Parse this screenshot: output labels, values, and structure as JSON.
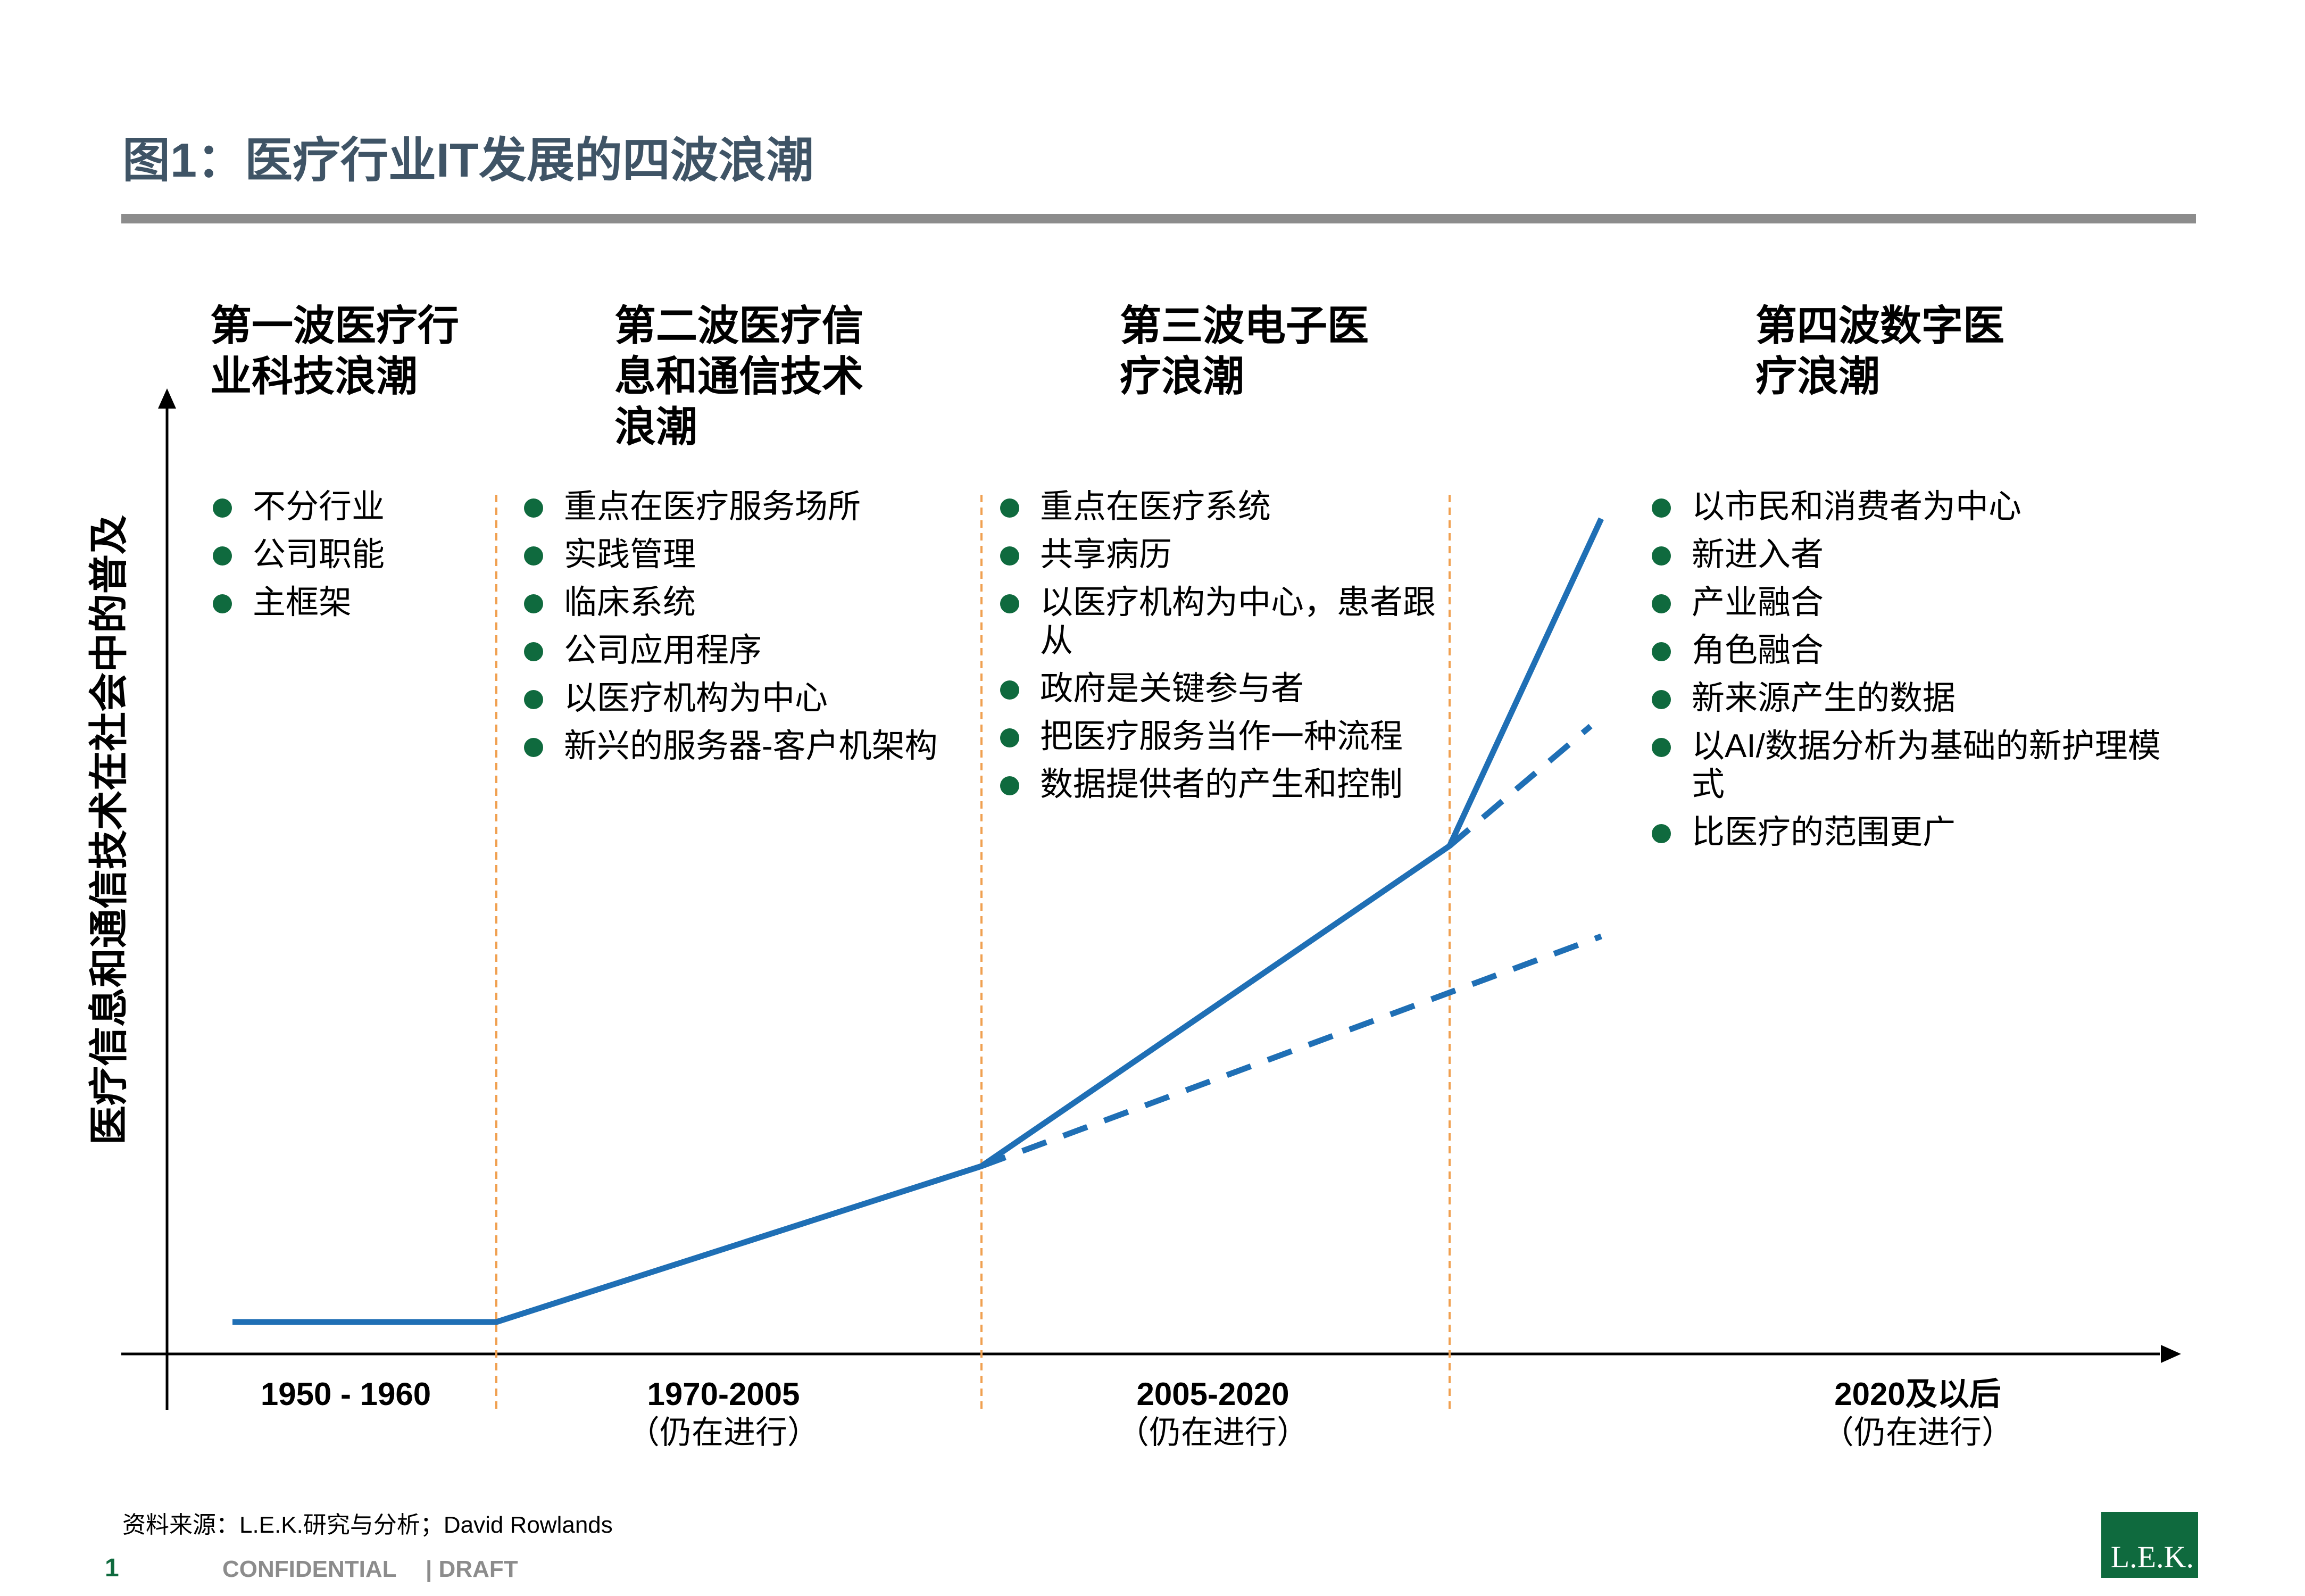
{
  "title": "图1：医疗行业IT发展的四波浪潮",
  "y_axis_label": "医疗信息和通信技术在社会中的普及",
  "waves": [
    {
      "title_lines": [
        "第一波医疗行",
        "业科技浪潮"
      ],
      "bullets": [
        "不分行业",
        "公司职能",
        "主框架"
      ],
      "period": "1950 - 1960",
      "status": ""
    },
    {
      "title_lines": [
        "第二波医疗信",
        "息和通信技术",
        "浪潮"
      ],
      "bullets": [
        "重点在医疗服务场所",
        "实践管理",
        "临床系统",
        "公司应用程序",
        "以医疗机构为中心",
        "新兴的服务器-客户机架构"
      ],
      "period": "1970-2005",
      "status": "（仍在进行）"
    },
    {
      "title_lines": [
        "第三波电子医",
        "疗浪潮"
      ],
      "bullets": [
        "重点在医疗系统",
        "共享病历",
        "以医疗机构为中心，患者跟\n从",
        "政府是关键参与者",
        "把医疗服务当作一种流程",
        "数据提供者的产生和控制"
      ],
      "period": "2005-2020",
      "status": "（仍在进行）"
    },
    {
      "title_lines": [
        "第四波数字医",
        "疗浪潮"
      ],
      "bullets": [
        "以市民和消费者为中心",
        "新进入者",
        "产业融合",
        "角色融合",
        "新来源产生的数据",
        "以AI/数据分析为基础的新护理模\n式",
        "比医疗的范围更广"
      ],
      "period": "2020及以后",
      "status": "（仍在进行）"
    }
  ],
  "source": "资料来源：L.E.K.研究与分析；David Rowlands",
  "footer": {
    "page_number": "1",
    "confidential": "CONFIDENTIAL",
    "draft": "|  DRAFT"
  },
  "logo_text": "L.E.K.",
  "colors": {
    "title": "#3f5466",
    "rule": "#8c8c8c",
    "curve": "#1f6fb5",
    "divider": "#f0a050",
    "bullet": "#0f6a3e",
    "logo": "#0f6a3e"
  },
  "chart_data": {
    "type": "line",
    "xlabel": "",
    "ylabel": "医疗信息和通信技术在社会中的普及",
    "categories": [
      "1950 - 1960",
      "1970-2005",
      "2005-2020",
      "2020及以后"
    ],
    "series": [
      {
        "style": "solid",
        "trend": "flat in wave 1, then accelerating growth through waves 2–4"
      },
      {
        "style": "dashed",
        "trend": "slower continuation of wave 2 growth, branching at start of wave 3"
      },
      {
        "style": "dashed",
        "trend": "slower continuation of wave 3 growth, branching at start of wave 4"
      }
    ],
    "grid": false,
    "legend": "none"
  }
}
